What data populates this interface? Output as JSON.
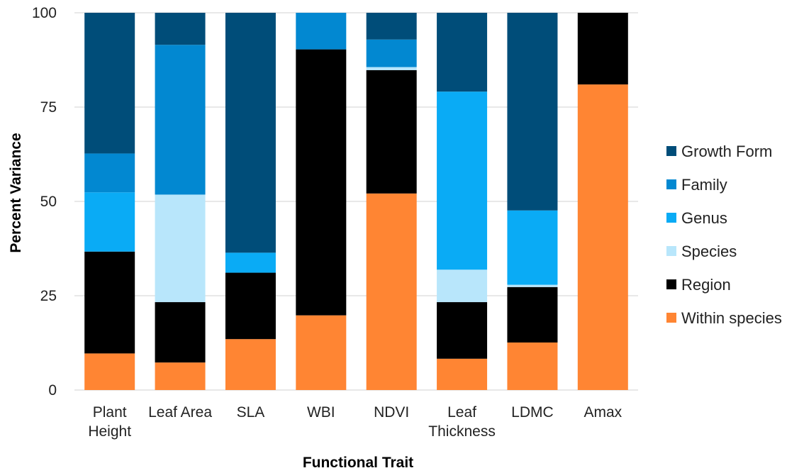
{
  "chart_data": {
    "type": "bar",
    "stacked": true,
    "xlabel": "Functional Trait",
    "ylabel": "Percent Variance",
    "ylim": [
      0,
      100
    ],
    "yticks": [
      0,
      25,
      50,
      75,
      100
    ],
    "grid": true,
    "legend_position": "right",
    "categories": [
      [
        "Plant",
        "Height"
      ],
      [
        "Leaf Area"
      ],
      [
        "SLA"
      ],
      [
        "WBI"
      ],
      [
        "NDVI"
      ],
      [
        "Leaf",
        "Thickness"
      ],
      [
        "LDMC"
      ],
      [
        "Amax"
      ]
    ],
    "series": [
      {
        "name": "Within species",
        "color": "#FF8533",
        "values": [
          9.7,
          7.3,
          13.5,
          19.8,
          52.1,
          8.3,
          12.6,
          81.0
        ]
      },
      {
        "name": "Region",
        "color": "#000000",
        "values": [
          27.0,
          16.0,
          17.6,
          70.5,
          32.7,
          15.0,
          14.7,
          19.0
        ]
      },
      {
        "name": "Species",
        "color": "#B8E6FB",
        "values": [
          0.0,
          28.5,
          0.0,
          0.0,
          0.8,
          8.6,
          0.6,
          0.0
        ]
      },
      {
        "name": "Genus",
        "color": "#0AABF5",
        "values": [
          15.7,
          0.0,
          5.3,
          0.0,
          0.0,
          47.2,
          19.7,
          0.0
        ]
      },
      {
        "name": "Family",
        "color": "#0288D1",
        "values": [
          10.3,
          39.7,
          0.0,
          9.7,
          7.3,
          0.0,
          0.0,
          0.0
        ]
      },
      {
        "name": "Growth Form",
        "color": "#004D79",
        "values": [
          37.3,
          8.5,
          63.6,
          0.0,
          7.1,
          20.9,
          52.4,
          0.0
        ]
      }
    ],
    "legend_order": [
      "Growth Form",
      "Family",
      "Genus",
      "Species",
      "Region",
      "Within species"
    ]
  }
}
